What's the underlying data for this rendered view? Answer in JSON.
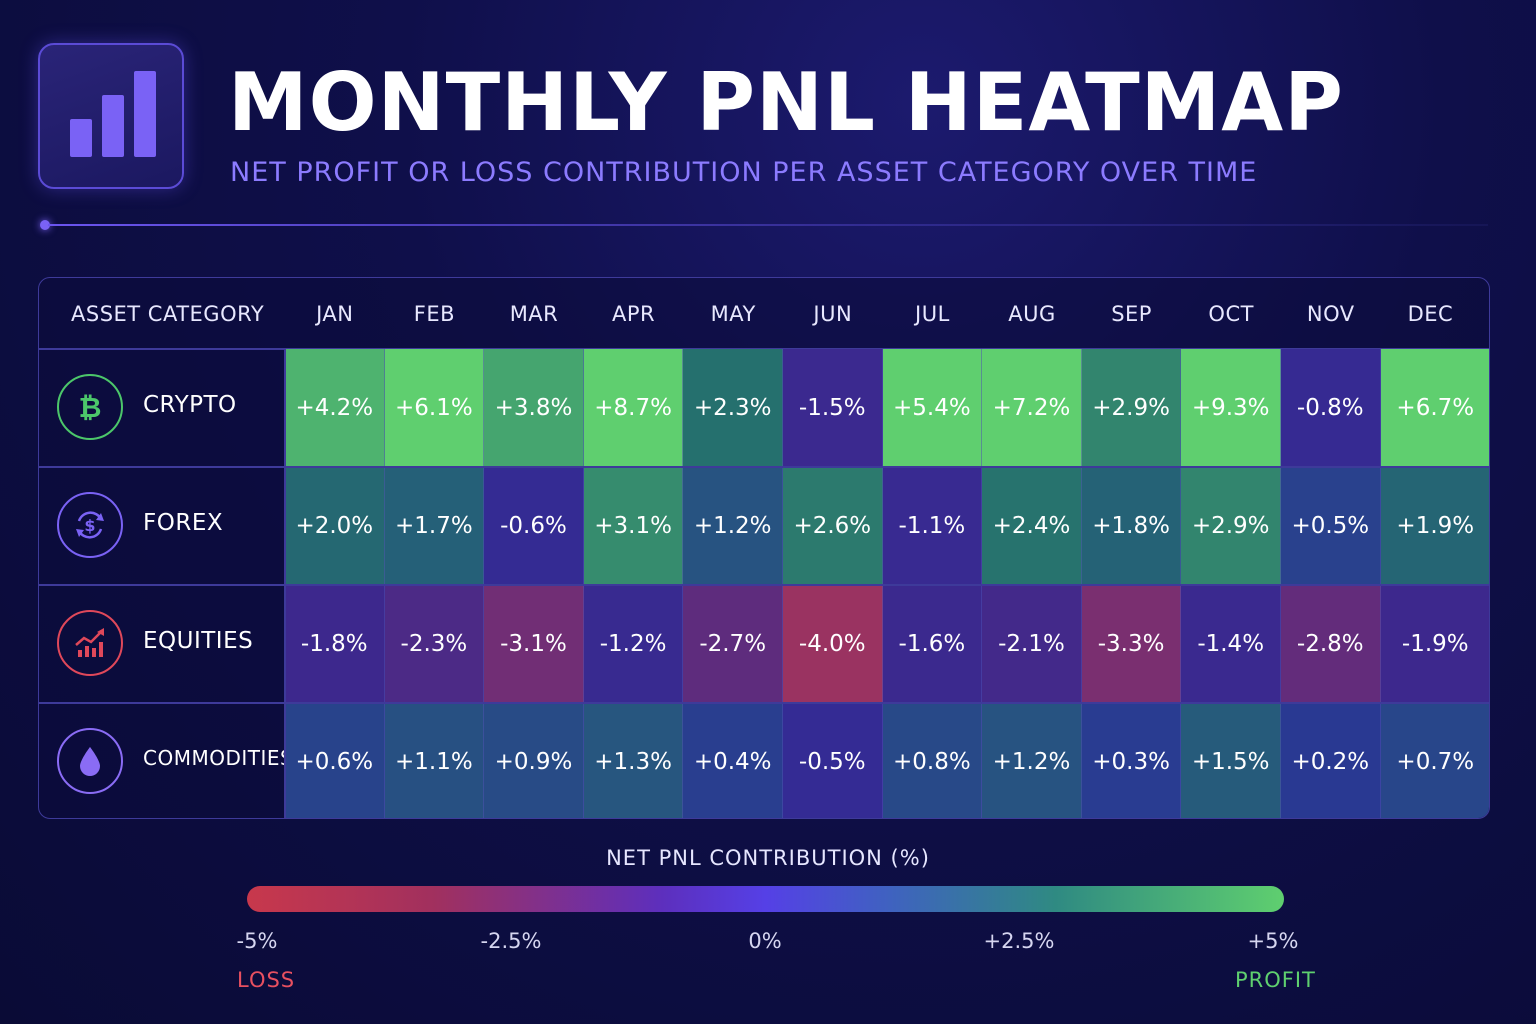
{
  "header": {
    "title": "MONTHLY PNL HEATMAP",
    "subtitle": "NET PROFIT OR LOSS CONTRIBUTION PER ASSET CATEGORY OVER TIME",
    "logo_icon": "bar-chart-icon"
  },
  "chart_data": {
    "type": "heatmap",
    "row_header": "ASSET CATEGORY",
    "columns": [
      "JAN",
      "FEB",
      "MAR",
      "APR",
      "MAY",
      "JUN",
      "JUL",
      "AUG",
      "SEP",
      "OCT",
      "NOV",
      "DEC"
    ],
    "rows": [
      {
        "name": "CRYPTO",
        "icon": "bitcoin-icon",
        "icon_color": "#4cc76a",
        "values": [
          4.2,
          6.1,
          3.8,
          8.7,
          2.3,
          -1.5,
          5.4,
          7.2,
          2.9,
          9.3,
          -0.8,
          6.7
        ],
        "labels": [
          "+4.2%",
          "+6.1%",
          "+3.8%",
          "+8.7%",
          "+2.3%",
          "-1.5%",
          "+5.4%",
          "+7.2%",
          "+2.9%",
          "+9.3%",
          "-0.8%",
          "+6.7%"
        ]
      },
      {
        "name": "FOREX",
        "icon": "currency-exchange-icon",
        "icon_color": "#7a62f5",
        "values": [
          2.0,
          1.7,
          -0.6,
          3.1,
          1.2,
          2.6,
          -1.1,
          2.4,
          1.8,
          2.9,
          0.5,
          1.9
        ],
        "labels": [
          "+2.0%",
          "+1.7%",
          "-0.6%",
          "+3.1%",
          "+1.2%",
          "+2.6%",
          "-1.1%",
          "+2.4%",
          "+1.8%",
          "+2.9%",
          "+0.5%",
          "+1.9%"
        ]
      },
      {
        "name": "EQUITIES",
        "icon": "stock-trend-icon",
        "icon_color": "#e0485a",
        "values": [
          -1.8,
          -2.3,
          -3.1,
          -1.2,
          -2.7,
          -4.0,
          -1.6,
          -2.1,
          -3.3,
          -1.4,
          -2.8,
          -1.9
        ],
        "labels": [
          "-1.8%",
          "-2.3%",
          "-3.1%",
          "-1.2%",
          "-2.7%",
          "-4.0%",
          "-1.6%",
          "-2.1%",
          "-3.3%",
          "-1.4%",
          "-2.8%",
          "-1.9%"
        ]
      },
      {
        "name": "COMMODITIES",
        "icon": "oil-drop-icon",
        "icon_color": "#8a6cf5",
        "values": [
          0.6,
          1.1,
          0.9,
          1.3,
          0.4,
          -0.5,
          0.8,
          1.2,
          0.3,
          1.5,
          0.2,
          0.7
        ],
        "labels": [
          "+0.6%",
          "+1.1%",
          "+0.9%",
          "+1.3%",
          "+0.4%",
          "-0.5%",
          "+0.8%",
          "+1.2%",
          "+0.3%",
          "+1.5%",
          "+0.2%",
          "+0.7%"
        ]
      }
    ],
    "color_scale": {
      "title": "NET PNL CONTRIBUTION (%)",
      "min": -5,
      "max": 5,
      "ticks": [
        "-5%",
        "-2.5%",
        "0%",
        "+2.5%",
        "+5%"
      ],
      "low_label": "LOSS",
      "high_label": "PROFIT",
      "colors": {
        "loss": "#c8384c",
        "neutral": "#4a3fd0",
        "profit": "#5fcf6f"
      }
    }
  }
}
